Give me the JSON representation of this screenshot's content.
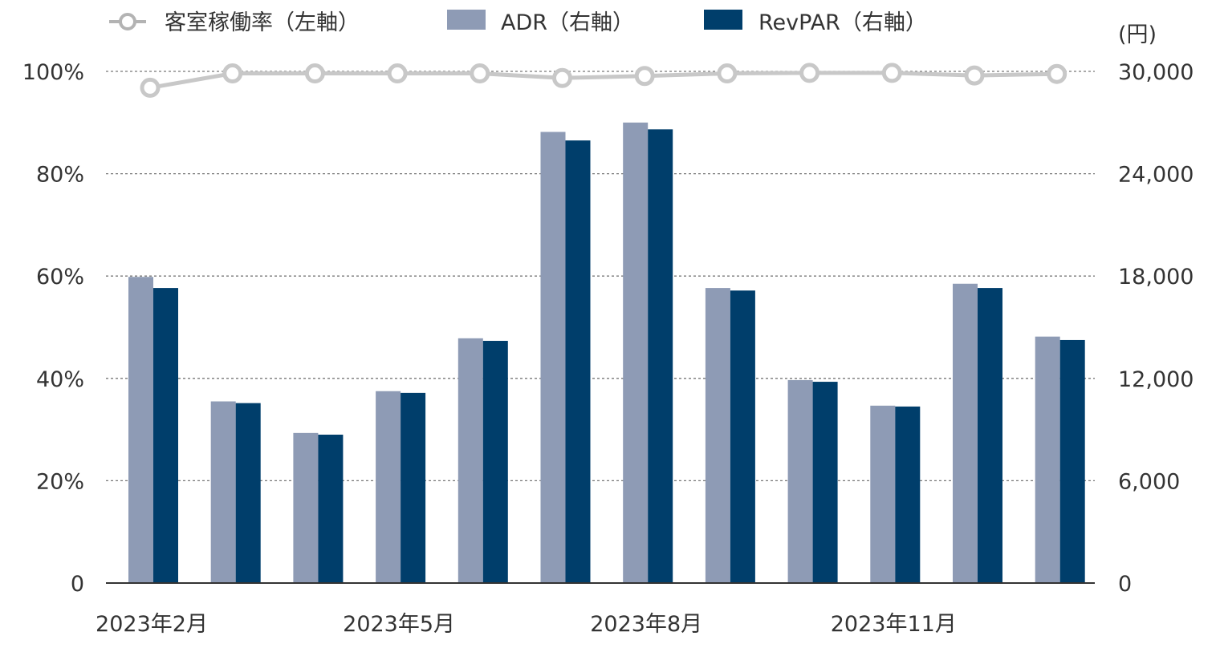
{
  "chart_data": {
    "type": "bar",
    "legend": {
      "occupancy": "客室稼働率（左軸）",
      "adr": "ADR（右軸）",
      "revpar": "RevPAR（右軸）"
    },
    "left_axis": {
      "ticks": [
        "0",
        "20%",
        "40%",
        "60%",
        "80%",
        "100%"
      ],
      "tick_values": [
        0,
        20,
        40,
        60,
        80,
        100
      ],
      "ylim": [
        0,
        100
      ]
    },
    "right_axis": {
      "unit_label": "(円)",
      "ticks": [
        "0",
        "6,000",
        "12,000",
        "18,000",
        "24,000",
        "30,000"
      ],
      "tick_values": [
        0,
        6000,
        12000,
        18000,
        24000,
        30000
      ],
      "ylim": [
        0,
        30000
      ]
    },
    "x_tick_labels": [
      {
        "index": 0,
        "label": "2023年2月"
      },
      {
        "index": 3,
        "label": "2023年5月"
      },
      {
        "index": 6,
        "label": "2023年8月"
      },
      {
        "index": 9,
        "label": "2023年11月"
      }
    ],
    "months": 12,
    "series": [
      {
        "name": "ADR（右軸）",
        "kind": "bar",
        "axis": "right",
        "color": "#8e9bb5",
        "values": [
          17950,
          10650,
          8800,
          11250,
          14350,
          26450,
          27000,
          17300,
          11900,
          10400,
          17550,
          14450
        ]
      },
      {
        "name": "RevPAR（右軸）",
        "kind": "bar",
        "axis": "right",
        "color": "#003e6b",
        "values": [
          17300,
          10550,
          8700,
          11150,
          14200,
          25950,
          26600,
          17150,
          11800,
          10350,
          17300,
          14250
        ]
      },
      {
        "name": "客室稼働率（左軸）",
        "kind": "line",
        "axis": "left",
        "color": "#c8c8c8",
        "values": [
          96.8,
          99.6,
          99.6,
          99.6,
          99.6,
          98.7,
          99.1,
          99.6,
          99.7,
          99.7,
          99.2,
          99.5
        ]
      }
    ],
    "grid": "dashed horizontal",
    "legend_position": "top-left"
  }
}
